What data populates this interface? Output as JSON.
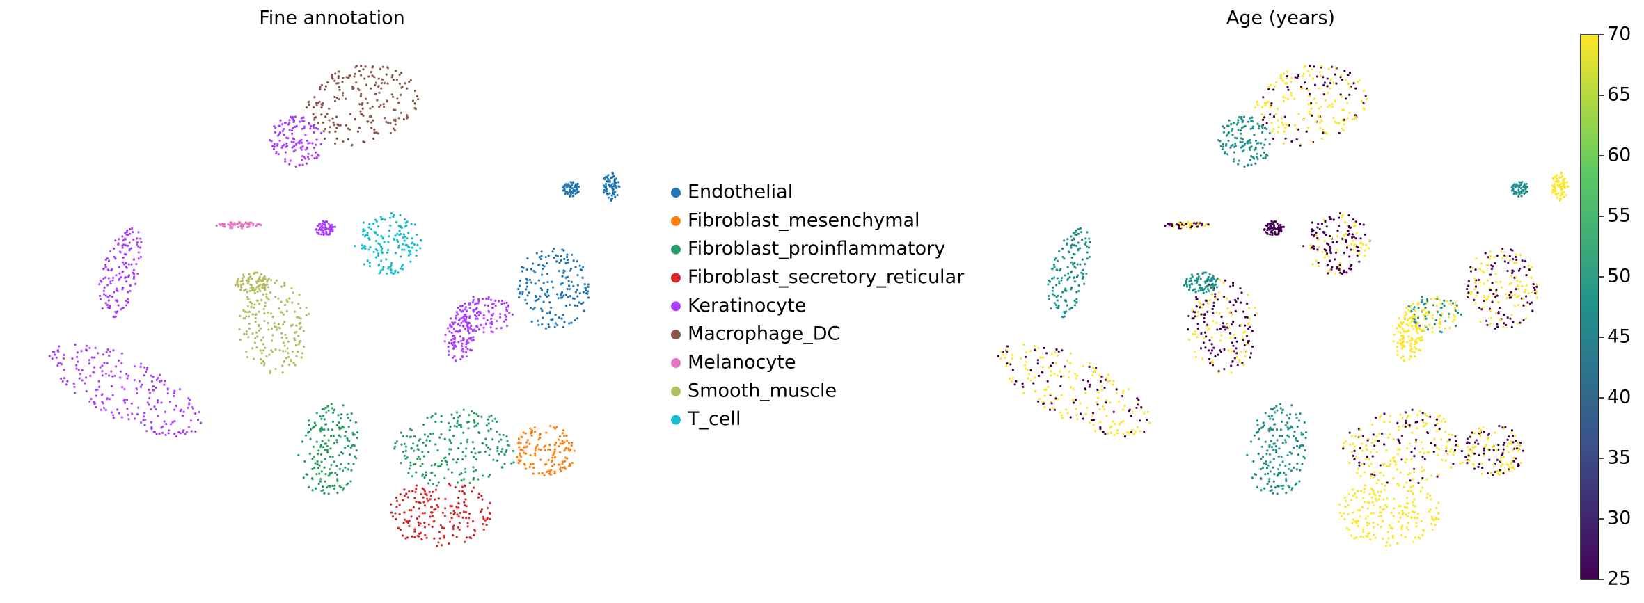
{
  "chart_data": [
    {
      "type": "scatter",
      "title": "Fine annotation",
      "series": [
        {
          "name": "Endothelial",
          "color": "#1f77b4"
        },
        {
          "name": "Fibroblast_mesenchymal",
          "color": "#ff7f0e"
        },
        {
          "name": "Fibroblast_proinflammatory",
          "color": "#279e68"
        },
        {
          "name": "Fibroblast_secretory_reticular",
          "color": "#d62728"
        },
        {
          "name": "Keratinocyte",
          "color": "#aa40fc"
        },
        {
          "name": "Macrophage_DC",
          "color": "#8c564b"
        },
        {
          "name": "Melanocyte",
          "color": "#e377c2"
        },
        {
          "name": "Smooth_muscle",
          "color": "#b5bd61"
        },
        {
          "name": "T_cell",
          "color": "#17becf"
        }
      ]
    },
    {
      "type": "scatter",
      "title": "Age (years)",
      "colorbar": {
        "lim": [
          25,
          70
        ],
        "ticks": [
          25,
          30,
          35,
          40,
          45,
          50,
          55,
          60,
          65,
          70
        ],
        "colormap": [
          "#440154",
          "#3b528b",
          "#21918c",
          "#5ec962",
          "#fde725"
        ]
      }
    }
  ]
}
